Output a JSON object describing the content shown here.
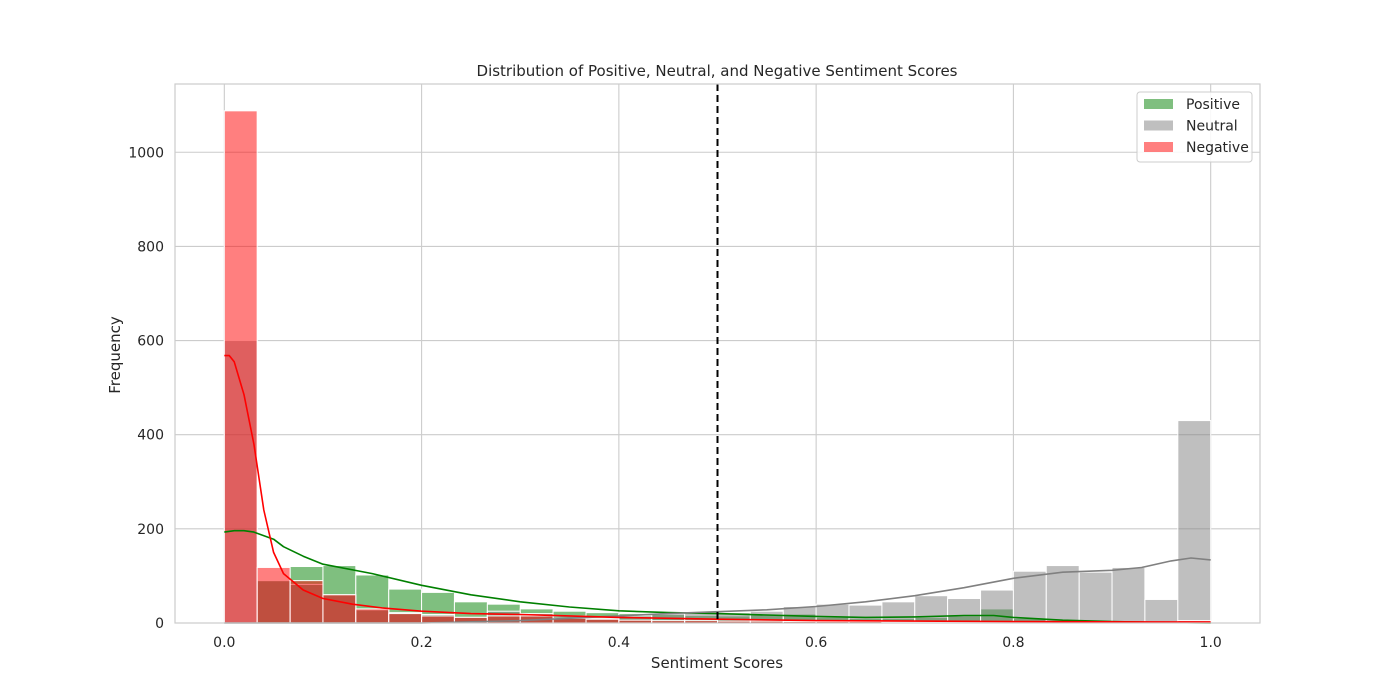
{
  "chart_data": {
    "type": "histogram",
    "title": "Distribution of Positive, Neutral, and Negative Sentiment Scores",
    "xlabel": "Sentiment Scores",
    "ylabel": "Frequency",
    "xlim": [
      -0.05,
      1.05
    ],
    "ylim": [
      0,
      1145
    ],
    "xticks": [
      0.0,
      0.2,
      0.4,
      0.6,
      0.8,
      1.0
    ],
    "xtick_labels": [
      "0.0",
      "0.2",
      "0.4",
      "0.6",
      "0.8",
      "1.0"
    ],
    "yticks": [
      0,
      200,
      400,
      600,
      800,
      1000
    ],
    "ytick_labels": [
      "0",
      "200",
      "400",
      "600",
      "800",
      "1000"
    ],
    "grid": true,
    "legend_position": "top-right",
    "reference_line": {
      "x": 0.5,
      "style": "dashed",
      "color": "#000000"
    },
    "bin_edges": [
      0.0,
      0.0333,
      0.0667,
      0.1,
      0.1333,
      0.1667,
      0.2,
      0.2333,
      0.2667,
      0.3,
      0.3333,
      0.3667,
      0.4,
      0.4333,
      0.4667,
      0.5,
      0.5333,
      0.5667,
      0.6,
      0.6333,
      0.6667,
      0.7,
      0.7333,
      0.7667,
      0.8,
      0.8333,
      0.8667,
      0.9,
      0.9333,
      0.9667,
      1.0
    ],
    "series": [
      {
        "name": "Positive",
        "color": "#008000",
        "counts": [
          0,
          90,
          120,
          122,
          102,
          72,
          65,
          45,
          40,
          30,
          25,
          22,
          20,
          18,
          16,
          15,
          17,
          19,
          12,
          10,
          10,
          12,
          15,
          30,
          10,
          5,
          3,
          2,
          1,
          0
        ],
        "kde_x": [
          0.0,
          0.01,
          0.02,
          0.03,
          0.05,
          0.06,
          0.08,
          0.1,
          0.15,
          0.2,
          0.25,
          0.3,
          0.35,
          0.4,
          0.45,
          0.5,
          0.55,
          0.6,
          0.65,
          0.7,
          0.75,
          0.78,
          0.8,
          0.85,
          0.9,
          0.95,
          1.0
        ],
        "kde_y": [
          193,
          196,
          196,
          193,
          178,
          162,
          142,
          125,
          105,
          80,
          60,
          45,
          34,
          26,
          22,
          20,
          17,
          14,
          12,
          13,
          16,
          16,
          12,
          6,
          3,
          1,
          0
        ]
      },
      {
        "name": "Neutral",
        "color": "#808080",
        "counts": [
          600,
          90,
          82,
          60,
          28,
          22,
          18,
          12,
          25,
          20,
          15,
          10,
          15,
          20,
          22,
          22,
          25,
          35,
          40,
          38,
          45,
          58,
          52,
          70,
          110,
          122,
          108,
          118,
          50,
          430
        ],
        "kde_x": [
          0.0,
          0.05,
          0.1,
          0.2,
          0.3,
          0.4,
          0.45,
          0.5,
          0.55,
          0.6,
          0.65,
          0.7,
          0.75,
          0.8,
          0.85,
          0.9,
          0.93,
          0.96,
          0.98,
          1.0
        ],
        "kde_y": [
          0,
          0,
          0,
          0,
          5,
          15,
          20,
          24,
          28,
          35,
          45,
          58,
          75,
          95,
          108,
          112,
          118,
          132,
          138,
          134
        ]
      },
      {
        "name": "Negative",
        "color": "#ff0000",
        "counts": [
          1088,
          118,
          90,
          60,
          30,
          20,
          15,
          12,
          15,
          15,
          10,
          8,
          6,
          5,
          5,
          4,
          4,
          3,
          3,
          3,
          2,
          2,
          2,
          2,
          2,
          2,
          2,
          2,
          2,
          5
        ],
        "kde_x": [
          0.0,
          0.005,
          0.01,
          0.02,
          0.03,
          0.04,
          0.05,
          0.06,
          0.08,
          0.1,
          0.13,
          0.16,
          0.2,
          0.25,
          0.3,
          0.35,
          0.4,
          0.5,
          0.6,
          0.8,
          1.0
        ],
        "kde_y": [
          568,
          568,
          555,
          485,
          380,
          240,
          150,
          105,
          70,
          52,
          40,
          32,
          25,
          20,
          18,
          15,
          12,
          8,
          5,
          3,
          2
        ]
      }
    ]
  }
}
